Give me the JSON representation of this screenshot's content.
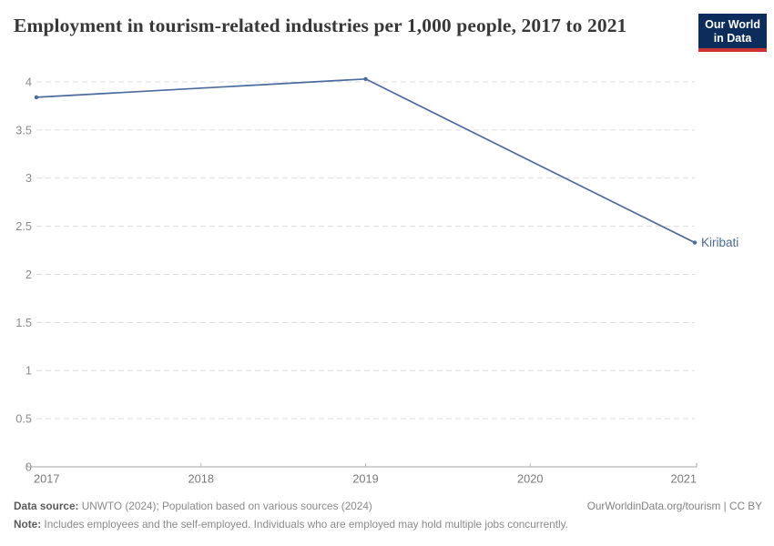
{
  "header": {
    "title": "Employment in tourism-related industries per 1,000 people, 2017 to 2021",
    "logo": {
      "line1": "Our World",
      "line2": "in Data",
      "bg_color": "#0c2d5b",
      "bar_color": "#cb3231"
    }
  },
  "chart_data": {
    "type": "line",
    "title": "Employment in tourism-related industries per 1,000 people, 2017 to 2021",
    "x": [
      2017,
      2019,
      2021
    ],
    "series": [
      {
        "name": "Kiribati",
        "color": "#4C6A9C",
        "values": [
          3.84,
          4.03,
          2.33
        ]
      }
    ],
    "x_ticks": [
      2017,
      2018,
      2019,
      2020,
      2021
    ],
    "y_ticks": [
      0,
      0.5,
      1,
      1.5,
      2,
      2.5,
      3,
      3.5,
      4
    ],
    "xlim": [
      2017,
      2021
    ],
    "ylim": [
      0,
      4.2
    ],
    "xlabel": "",
    "ylabel": "",
    "grid": "horizontal-dashed",
    "legend_position": "end-of-line",
    "entity_label": "Kiribati",
    "colors": {
      "line": "#4C6A9C",
      "entity_label": "#4C6A9C",
      "gridline": "#dddddd",
      "axis": "#a3a3a3",
      "y_tick_label": "#8b8b8b",
      "x_tick_label": "#7a7a7a"
    }
  },
  "footer": {
    "data_source_label": "Data source:",
    "data_source_text": " UNWTO (2024); Population based on various sources (2024)",
    "attribution": "OurWorldinData.org/tourism | CC BY",
    "note_label": "Note:",
    "note_text": " Includes employees and the self-employed. Individuals who are employed may hold multiple jobs concurrently."
  }
}
